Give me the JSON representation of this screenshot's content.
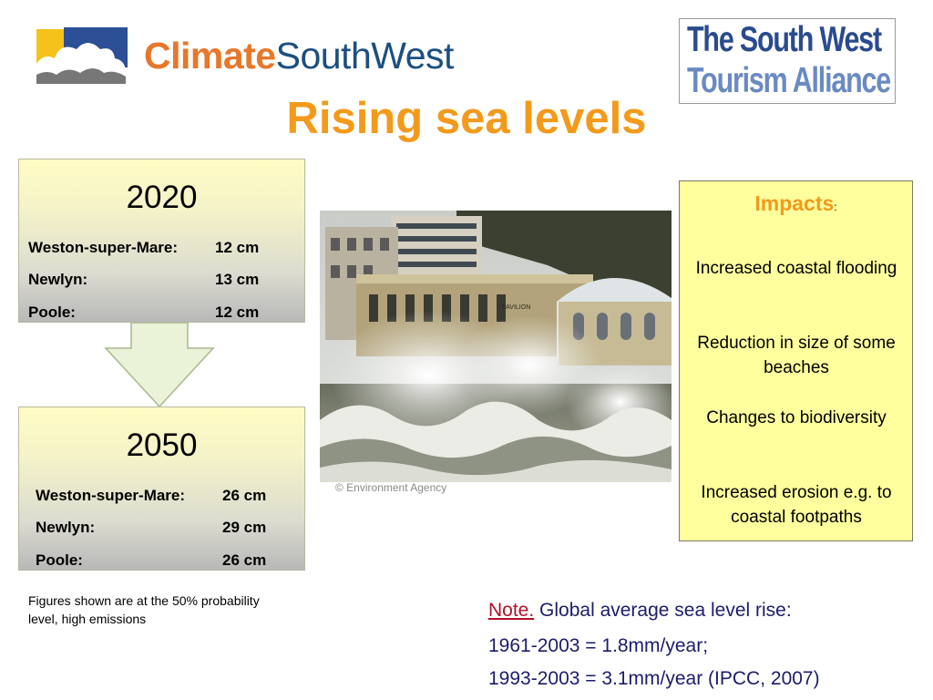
{
  "logos": {
    "climate_part1": "Climate",
    "climate_part2": "SouthWest",
    "tourism_line1": "The South West",
    "tourism_line2": "Tourism Alliance"
  },
  "title": "Rising sea levels",
  "year_boxes": [
    {
      "year": "2020",
      "rows": [
        {
          "place": "Weston-super-Mare:",
          "value": "12 cm"
        },
        {
          "place": "Newlyn:",
          "value": "13 cm"
        },
        {
          "place": "Poole:",
          "value": "12 cm"
        }
      ]
    },
    {
      "year": "2050",
      "rows": [
        {
          "place": "Weston-super-Mare:",
          "value": "26 cm"
        },
        {
          "place": "Newlyn:",
          "value": "29 cm"
        },
        {
          "place": "Poole:",
          "value": "26 cm"
        }
      ]
    }
  ],
  "photo": {
    "sign_text": "PAVILION",
    "credit": "© Environment Agency"
  },
  "impacts": {
    "heading": "Impacts",
    "heading_suffix": ":",
    "items": [
      "Increased coastal flooding",
      "Reduction in size of some beaches",
      "Changes to biodiversity",
      "Increased erosion e.g. to coastal footpaths"
    ]
  },
  "footnote": "Figures shown are at the 50% probability level, high emissions",
  "note": {
    "label": "Note.",
    "line1": " Global average sea level rise:",
    "line2": "1961-2003 = 1.8mm/year;",
    "line3": "1993-2003 = 3.1mm/year (IPCC, 2007)"
  },
  "colors": {
    "title_orange": "#f39a1b",
    "impacts_bg": "#ffff9e",
    "note_red": "#b0102a",
    "note_blue": "#1c1c6b"
  }
}
